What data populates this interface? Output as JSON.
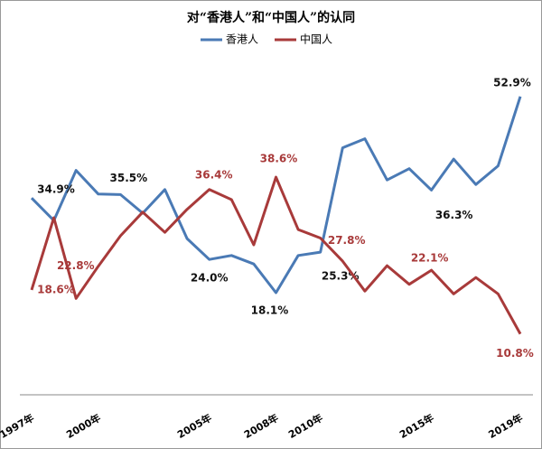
{
  "chart_data": {
    "type": "line",
    "title": "对“香港人”和“中国人”的认同",
    "categories": [
      "1997年",
      null,
      null,
      "2000年",
      null,
      null,
      null,
      null,
      "2005年",
      null,
      null,
      "2008年",
      null,
      "2010年",
      null,
      null,
      null,
      null,
      "2015年",
      null,
      null,
      null,
      "2019年"
    ],
    "series": [
      {
        "name": "香港人",
        "color": "#4a7ab5",
        "values": [
          34.9,
          30.9,
          39.8,
          35.6,
          35.5,
          32.2,
          36.4,
          27.7,
          24.0,
          24.7,
          23.2,
          18.1,
          24.7,
          25.3,
          43.8,
          45.4,
          38.1,
          40.1,
          36.3,
          41.8,
          37.3,
          40.6,
          52.9
        ],
        "value_labels": [
          "34.9%",
          null,
          null,
          null,
          "35.5%",
          null,
          null,
          null,
          "24.0%",
          null,
          null,
          "18.1%",
          null,
          "25.3%",
          null,
          null,
          null,
          null,
          "36.3%",
          null,
          null,
          null,
          "52.9%"
        ]
      },
      {
        "name": "中国人",
        "color": "#a83a3a",
        "values": [
          18.6,
          31.4,
          17.1,
          22.8,
          28.2,
          32.4,
          28.8,
          32.9,
          36.4,
          34.6,
          26.6,
          38.6,
          29.3,
          27.8,
          23.7,
          18.4,
          22.9,
          19.6,
          22.1,
          17.9,
          20.8,
          17.9,
          10.8
        ],
        "value_labels": [
          "18.6%",
          null,
          null,
          "22.8%",
          null,
          null,
          null,
          null,
          "36.4%",
          null,
          null,
          "38.6%",
          null,
          "27.8%",
          null,
          null,
          null,
          null,
          "22.1%",
          null,
          null,
          null,
          "10.8%"
        ]
      }
    ],
    "ylim": [
      0,
      58
    ],
    "legend": "top"
  }
}
